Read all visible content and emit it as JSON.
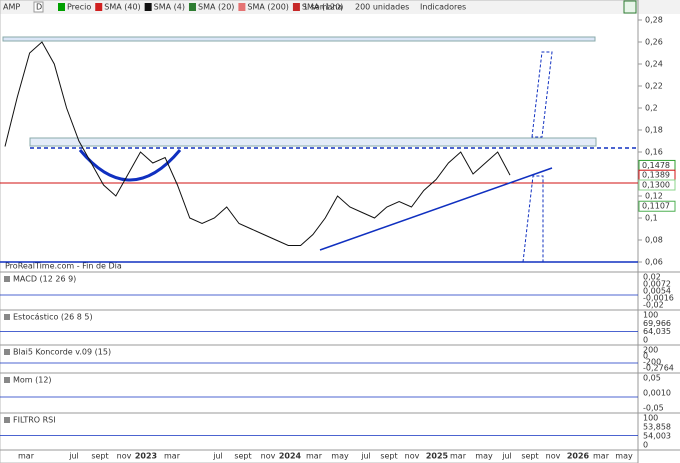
{
  "toolbar": {
    "symbol": "AMP",
    "period_button": "D",
    "legend": [
      {
        "name": "Precio",
        "color": "#00a000"
      },
      {
        "name": "SMA (40)",
        "color": "#d02020"
      },
      {
        "name": "SMA (4)",
        "color": "#111111"
      },
      {
        "name": "SMA (20)",
        "color": "#2e7d32"
      },
      {
        "name": "SMA (200)",
        "color": "#e57373"
      },
      {
        "name": "SMA (120)",
        "color": "#c62828"
      }
    ],
    "interval": "1 semana",
    "units": "200 unidades",
    "indicators": "Indicadores"
  },
  "chart_data": {
    "type": "line",
    "x": [
      0,
      1,
      2,
      3,
      4,
      5,
      6,
      7,
      8,
      9,
      10,
      11,
      12,
      13,
      14,
      15,
      16,
      17,
      18,
      19,
      20,
      21,
      22,
      23,
      24,
      25,
      26,
      27,
      28,
      29,
      30,
      31,
      32,
      33,
      34,
      35,
      36,
      37,
      38,
      39,
      40,
      41
    ],
    "series": [
      {
        "name": "Precio",
        "color": "#111111",
        "values": [
          0.165,
          0.21,
          0.25,
          0.26,
          0.24,
          0.2,
          0.17,
          0.15,
          0.13,
          0.12,
          0.14,
          0.16,
          0.15,
          0.155,
          0.13,
          0.1,
          0.095,
          0.1,
          0.11,
          0.095,
          0.09,
          0.085,
          0.08,
          0.075,
          0.075,
          0.085,
          0.1,
          0.12,
          0.11,
          0.105,
          0.1,
          0.11,
          0.115,
          0.11,
          0.125,
          0.135,
          0.15,
          0.16,
          0.14,
          0.15,
          0.16,
          0.139
        ]
      }
    ],
    "xlim": [
      0,
      41
    ],
    "ylim": [
      0.06,
      0.28
    ],
    "yticks": [
      {
        "value": 0.28,
        "label": "0,28"
      },
      {
        "value": 0.26,
        "label": "0,26"
      },
      {
        "value": 0.24,
        "label": "0,24"
      },
      {
        "value": 0.22,
        "label": "0,22"
      },
      {
        "value": 0.2,
        "label": "0,2"
      },
      {
        "value": 0.18,
        "label": "0,18"
      },
      {
        "value": 0.16,
        "label": "0,16"
      },
      {
        "value": 0.14,
        "label": "0,14"
      },
      {
        "value": 0.12,
        "label": "0,12"
      },
      {
        "value": 0.1,
        "label": "0,1"
      },
      {
        "value": 0.08,
        "label": "0,08"
      },
      {
        "value": 0.06,
        "label": "0,06"
      }
    ],
    "price_tags": [
      {
        "value": 0.1478,
        "label": "0,1478",
        "color": "#2e9e2e"
      },
      {
        "value": 0.1389,
        "label": "0,1389",
        "color": "#d01010"
      },
      {
        "value": 0.13,
        "label": "0,1300",
        "color": "#8bd48b"
      },
      {
        "value": 0.1107,
        "label": "0,1107",
        "color": "#4caf50"
      }
    ],
    "source": "ProRealTime.com - Fin de Día",
    "x_labels": [
      "mar",
      "jul",
      "sept",
      "nov",
      "2023",
      "mar",
      "jul",
      "sept",
      "nov",
      "2024",
      "mar",
      "may",
      "jul",
      "sept",
      "nov",
      "2025",
      "mar",
      "may",
      "jul",
      "sept",
      "nov",
      "2026",
      "mar",
      "may"
    ]
  },
  "panels": [
    {
      "title": "MACD (12 26 9)",
      "labels": [
        "0,02",
        "0,0072",
        "0,0054",
        "-0,0016",
        "-0,02"
      ]
    },
    {
      "title": "Estocástico (26 8 5)",
      "labels": [
        "100",
        "69,966",
        "64,035",
        "0"
      ]
    },
    {
      "title": "Blai5 Koncorde v.09 (15)",
      "labels": [
        "200",
        "0",
        "-200",
        "-0,2764"
      ]
    },
    {
      "title": "Mom (12)",
      "labels": [
        "0,05",
        "0,0010",
        "-0,05"
      ]
    },
    {
      "title": "FILTRO RSI",
      "labels": [
        "100",
        "53,858",
        "54,003",
        "0"
      ]
    }
  ]
}
